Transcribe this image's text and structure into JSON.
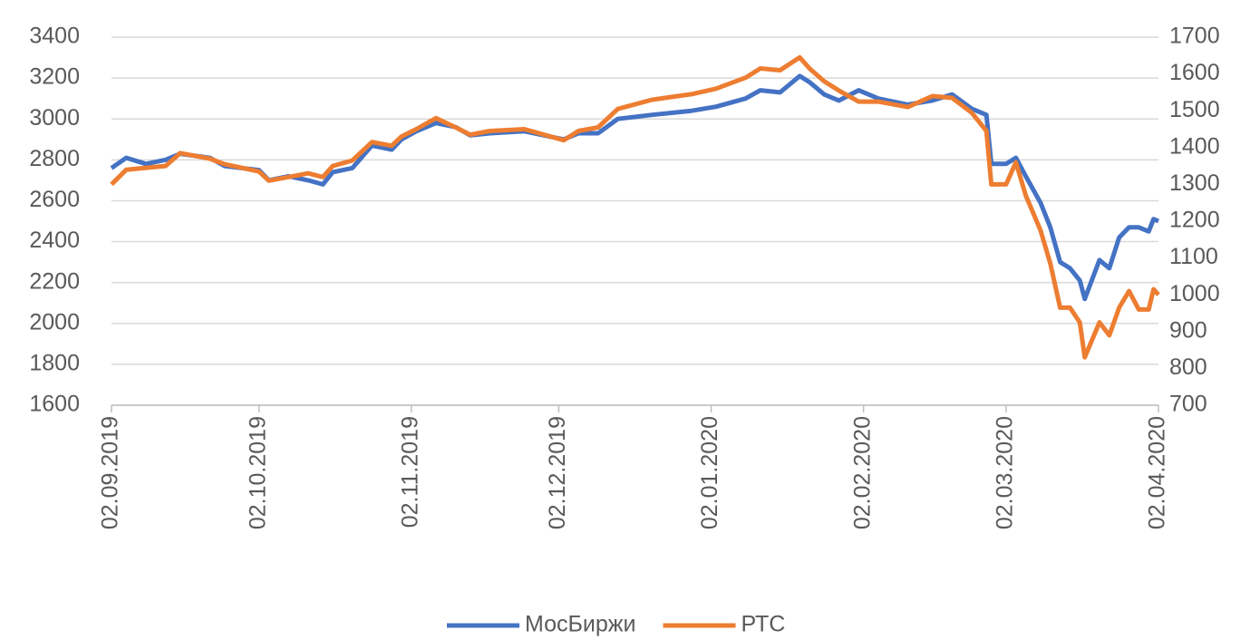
{
  "chart_data": {
    "type": "line",
    "x": [
      "02.09.2019",
      "05.09.2019",
      "09.09.2019",
      "13.09.2019",
      "16.09.2019",
      "22.09.2019",
      "25.09.2019",
      "02.10.2019",
      "04.10.2019",
      "08.10.2019",
      "12.10.2019",
      "15.10.2019",
      "17.10.2019",
      "21.10.2019",
      "25.10.2019",
      "29.10.2019",
      "31.10.2019",
      "03.11.2019",
      "07.11.2019",
      "11.11.2019",
      "14.11.2019",
      "18.11.2019",
      "25.11.2019",
      "03.12.2019",
      "06.12.2019",
      "10.12.2019",
      "14.12.2019",
      "21.12.2019",
      "29.12.2019",
      "03.01.2020",
      "09.01.2020",
      "12.01.2020",
      "16.01.2020",
      "20.01.2020",
      "22.01.2020",
      "25.01.2020",
      "28.01.2020",
      "01.02.2020",
      "05.02.2020",
      "11.02.2020",
      "16.02.2020",
      "20.02.2020",
      "24.02.2020",
      "27.02.2020",
      "28.02.2020",
      "02.03.2020",
      "04.03.2020",
      "06.03.2020",
      "09.03.2020",
      "11.03.2020",
      "13.03.2020",
      "15.03.2020",
      "17.03.2020",
      "18.03.2020",
      "21.03.2020",
      "23.03.2020",
      "25.03.2020",
      "27.03.2020",
      "29.03.2020",
      "31.03.2020",
      "01.04.2020",
      "02.04.2020"
    ],
    "series": [
      {
        "name": "МосБиржи",
        "color": "#4472c4",
        "axis": "y",
        "values": [
          2760,
          2810,
          2780,
          2800,
          2830,
          2810,
          2770,
          2750,
          2700,
          2720,
          2700,
          2680,
          2740,
          2760,
          2870,
          2850,
          2900,
          2940,
          2980,
          2960,
          2920,
          2930,
          2940,
          2900,
          2930,
          2930,
          3000,
          3020,
          3040,
          3060,
          3100,
          3140,
          3130,
          3210,
          3180,
          3120,
          3090,
          3140,
          3100,
          3070,
          3090,
          3120,
          3050,
          3020,
          2780,
          2780,
          2810,
          2720,
          2590,
          2470,
          2300,
          2270,
          2210,
          2120,
          2310,
          2270,
          2420,
          2470,
          2470,
          2450,
          2510,
          2500
        ]
      },
      {
        "name": "РТС",
        "color": "#ed7d31",
        "axis": "y2",
        "values": [
          1300,
          1340,
          1345,
          1350,
          1385,
          1370,
          1355,
          1335,
          1310,
          1320,
          1330,
          1320,
          1350,
          1365,
          1415,
          1405,
          1430,
          1450,
          1480,
          1455,
          1435,
          1445,
          1450,
          1420,
          1445,
          1455,
          1505,
          1530,
          1545,
          1560,
          1590,
          1615,
          1610,
          1645,
          1615,
          1580,
          1555,
          1525,
          1525,
          1510,
          1540,
          1535,
          1495,
          1445,
          1300,
          1300,
          1360,
          1270,
          1175,
          1085,
          965,
          965,
          925,
          830,
          925,
          890,
          965,
          1010,
          960,
          960,
          1015,
          1000
        ]
      }
    ],
    "xlim": [
      "02.09.2019",
      "02.04.2020"
    ],
    "xticks": [
      "02.09.2019",
      "02.10.2019",
      "02.11.2019",
      "02.12.2019",
      "02.01.2020",
      "02.02.2020",
      "02.03.2020",
      "02.04.2020"
    ],
    "ylim": [
      1600,
      3400
    ],
    "yticks": [
      1600,
      1800,
      2000,
      2200,
      2400,
      2600,
      2800,
      3000,
      3200,
      3400
    ],
    "y2lim": [
      700,
      1700
    ],
    "y2ticks": [
      700,
      800,
      900,
      1000,
      1100,
      1200,
      1300,
      1400,
      1500,
      1600,
      1700
    ],
    "grid": true,
    "legend": "bottom"
  }
}
